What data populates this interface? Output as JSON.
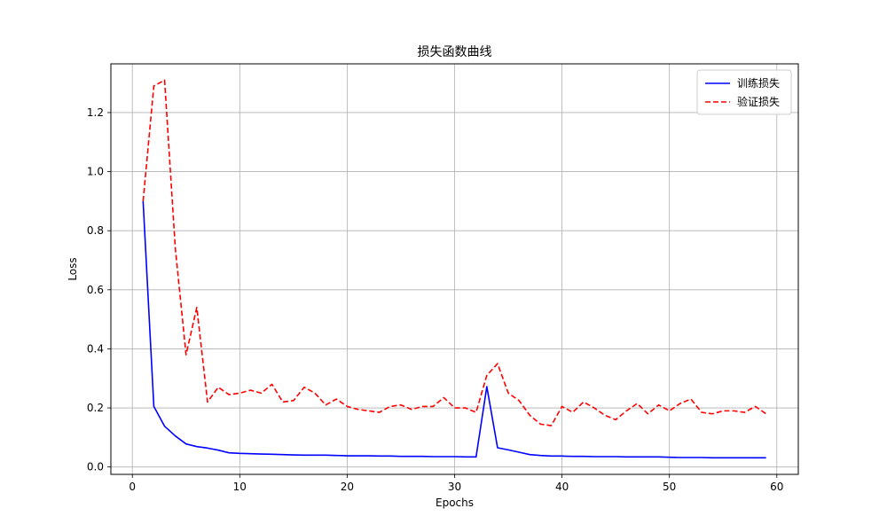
{
  "chart_data": {
    "type": "line",
    "title": "损失函数曲线",
    "xlabel": "Epochs",
    "ylabel": "Loss",
    "xlim": [
      -2,
      62
    ],
    "ylim": [
      -0.025,
      1.365
    ],
    "xticks": [
      0,
      10,
      20,
      30,
      40,
      50,
      60
    ],
    "yticks": [
      0.0,
      0.2,
      0.4,
      0.6,
      0.8,
      1.0,
      1.2
    ],
    "grid": true,
    "legend_position": "upper right",
    "series": [
      {
        "name": "训练损失",
        "color": "#0000ff",
        "dash": "solid",
        "x": [
          1,
          2,
          3,
          4,
          5,
          6,
          7,
          8,
          9,
          10,
          11,
          12,
          13,
          14,
          15,
          16,
          17,
          18,
          19,
          20,
          21,
          22,
          23,
          24,
          25,
          26,
          27,
          28,
          29,
          30,
          31,
          32,
          33,
          34,
          35,
          36,
          37,
          38,
          39,
          40,
          41,
          42,
          43,
          44,
          45,
          46,
          47,
          48,
          49,
          50,
          51,
          52,
          53,
          54,
          55,
          56,
          57,
          58,
          59
        ],
        "values": [
          0.9,
          0.205,
          0.138,
          0.105,
          0.078,
          0.069,
          0.064,
          0.057,
          0.048,
          0.046,
          0.045,
          0.044,
          0.043,
          0.042,
          0.041,
          0.04,
          0.04,
          0.04,
          0.039,
          0.038,
          0.038,
          0.038,
          0.037,
          0.037,
          0.036,
          0.036,
          0.036,
          0.035,
          0.035,
          0.035,
          0.034,
          0.034,
          0.272,
          0.065,
          0.058,
          0.05,
          0.042,
          0.039,
          0.037,
          0.037,
          0.036,
          0.036,
          0.035,
          0.035,
          0.035,
          0.034,
          0.034,
          0.034,
          0.034,
          0.033,
          0.032,
          0.032,
          0.032,
          0.031,
          0.031,
          0.031,
          0.031,
          0.031,
          0.031
        ]
      },
      {
        "name": "验证损失",
        "color": "#ff0000",
        "dash": "dashed",
        "x": [
          1,
          2,
          3,
          4,
          5,
          6,
          7,
          8,
          9,
          10,
          11,
          12,
          13,
          14,
          15,
          16,
          17,
          18,
          19,
          20,
          21,
          22,
          23,
          24,
          25,
          26,
          27,
          28,
          29,
          30,
          31,
          32,
          33,
          34,
          35,
          36,
          37,
          38,
          39,
          40,
          41,
          42,
          43,
          44,
          45,
          46,
          47,
          48,
          49,
          50,
          51,
          52,
          53,
          54,
          55,
          56,
          57,
          58,
          59
        ],
        "values": [
          0.9,
          1.29,
          1.31,
          0.74,
          0.38,
          0.54,
          0.22,
          0.27,
          0.245,
          0.25,
          0.26,
          0.25,
          0.28,
          0.22,
          0.225,
          0.27,
          0.25,
          0.21,
          0.23,
          0.205,
          0.195,
          0.19,
          0.185,
          0.205,
          0.21,
          0.195,
          0.205,
          0.205,
          0.235,
          0.2,
          0.2,
          0.185,
          0.31,
          0.35,
          0.25,
          0.225,
          0.175,
          0.145,
          0.14,
          0.205,
          0.185,
          0.22,
          0.2,
          0.175,
          0.16,
          0.19,
          0.215,
          0.18,
          0.21,
          0.19,
          0.215,
          0.23,
          0.185,
          0.18,
          0.19,
          0.19,
          0.185,
          0.205,
          0.18
        ]
      }
    ]
  }
}
